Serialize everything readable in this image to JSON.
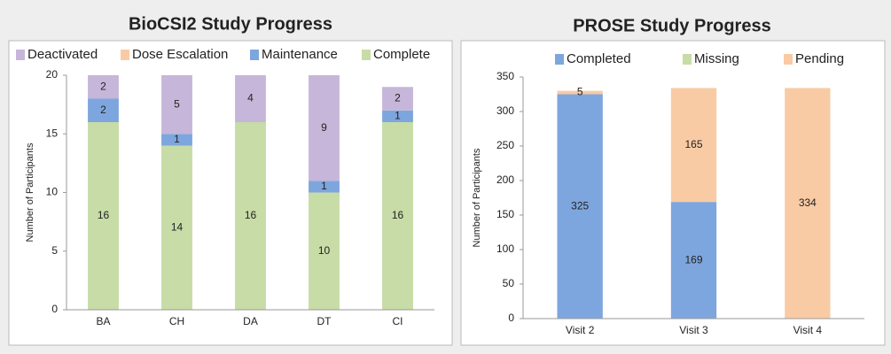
{
  "chart_data": [
    {
      "type": "bar",
      "stacked": true,
      "title": "BioCSI2 Study Progress",
      "ylabel": "Number of Participants",
      "categories": [
        "BA",
        "CH",
        "DA",
        "DT",
        "CI"
      ],
      "series": [
        {
          "name": "Deactivated",
          "color": "#c6b6d9",
          "values": [
            2,
            5,
            4,
            9,
            2
          ]
        },
        {
          "name": "Dose Escalation",
          "color": "#f9cba4",
          "values": [
            0,
            0,
            0,
            0,
            0
          ]
        },
        {
          "name": "Maintenance",
          "color": "#7ea6de",
          "values": [
            2,
            1,
            0,
            1,
            1
          ]
        },
        {
          "name": "Complete",
          "color": "#c7dca6",
          "values": [
            16,
            14,
            16,
            10,
            16
          ]
        }
      ],
      "ylim": [
        0,
        20
      ],
      "yticks": [
        0,
        5,
        10,
        15,
        20
      ],
      "grid": false,
      "legend": "top"
    },
    {
      "type": "bar",
      "stacked": true,
      "title": "PROSE Study Progress",
      "ylabel": "Number of Participants",
      "categories": [
        "Visit 2",
        "Visit 3",
        "Visit 4"
      ],
      "series": [
        {
          "name": "Completed",
          "color": "#7ea6de",
          "values": [
            325,
            169,
            0
          ]
        },
        {
          "name": "Missing",
          "color": "#c7dca6",
          "values": [
            0,
            0,
            0
          ]
        },
        {
          "name": "Pending",
          "color": "#f9cba4",
          "values": [
            5,
            165,
            334
          ]
        }
      ],
      "ylim": [
        0,
        350
      ],
      "yticks": [
        0,
        50,
        100,
        150,
        200,
        250,
        300,
        350
      ],
      "grid": false,
      "legend": "top"
    }
  ]
}
